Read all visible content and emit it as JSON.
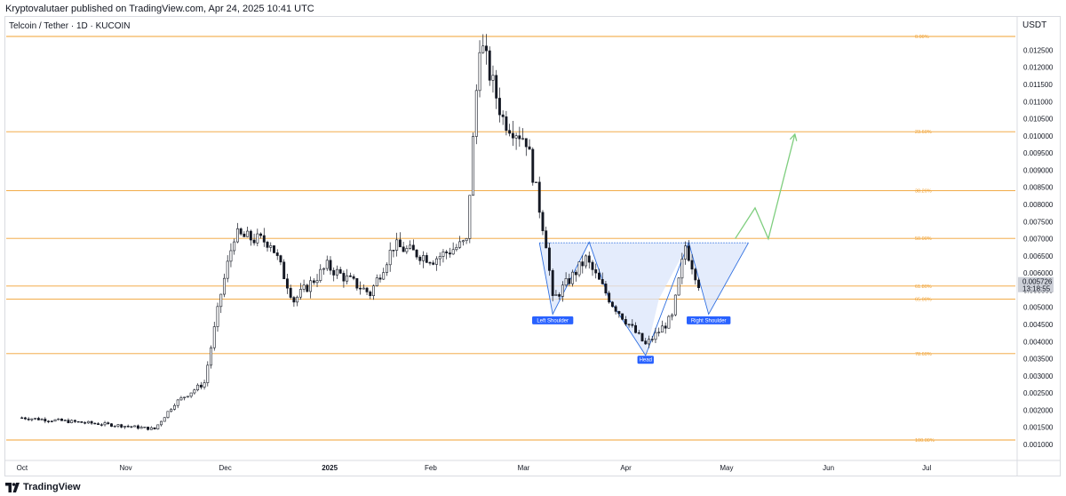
{
  "header": {
    "publisher_line": "Kryptovalutaer published on TradingView.com, Apr 24, 2025 10:41 UTC"
  },
  "footer": {
    "brand": "TradingView"
  },
  "colors": {
    "fib_line": "#f0a030",
    "candle": "#131722",
    "pattern_fill": "#dbe5fb",
    "pattern_line": "#2f6fe0",
    "label_bg": "#2962ff",
    "projection": "#7fce7f",
    "price_tag_bg": "#cdd0d8"
  },
  "chart_data": {
    "type": "candlestick",
    "title": "Telcoin / Tether · 1D · KUCOIN",
    "currency": "USDT",
    "ylim": [
      0.0008,
      0.01295
    ],
    "y_ticks": [
      "0.012500",
      "0.012000",
      "0.011500",
      "0.011000",
      "0.010500",
      "0.010000",
      "0.009500",
      "0.009000",
      "0.008500",
      "0.008000",
      "0.007500",
      "0.007000",
      "0.006500",
      "0.006000",
      "0.005500",
      "0.005000",
      "0.004500",
      "0.004000",
      "0.003500",
      "0.003000",
      "0.002500",
      "0.002000",
      "0.001500",
      "0.001000"
    ],
    "x_ticks": [
      {
        "label": "Oct",
        "day": 0,
        "bold": false
      },
      {
        "label": "Nov",
        "day": 31,
        "bold": false
      },
      {
        "label": "Dec",
        "day": 61,
        "bold": false
      },
      {
        "label": "2025",
        "day": 92,
        "bold": true
      },
      {
        "label": "Feb",
        "day": 123,
        "bold": false
      },
      {
        "label": "Mar",
        "day": 151,
        "bold": false
      },
      {
        "label": "Apr",
        "day": 182,
        "bold": false
      },
      {
        "label": "May",
        "day": 212,
        "bold": false
      },
      {
        "label": "Jun",
        "day": 243,
        "bold": false
      },
      {
        "label": "Jul",
        "day": 273,
        "bold": false
      }
    ],
    "x_range_days": [
      -5,
      300
    ],
    "fib_levels": [
      {
        "label": "0.00%",
        "price": 0.0129
      },
      {
        "label": "23.60%",
        "price": 0.01012
      },
      {
        "label": "38.20%",
        "price": 0.0084
      },
      {
        "label": "50.00%",
        "price": 0.00701
      },
      {
        "label": "61.80%",
        "price": 0.00562
      },
      {
        "label": "65.00%",
        "price": 0.00524
      },
      {
        "label": "78.60%",
        "price": 0.00365
      },
      {
        "label": "100.00%",
        "price": 0.00113
      }
    ],
    "last_price": {
      "value": "0.005726",
      "countdown": "13:18:55"
    },
    "pattern": {
      "neckline_top": 0.00688,
      "neckline_start_day": 156,
      "neckline_end_day": 219,
      "points": [
        {
          "day": 156,
          "price": 0.00688
        },
        {
          "day": 160,
          "price": 0.0048
        },
        {
          "day": 171,
          "price": 0.0069
        },
        {
          "day": 177,
          "price": 0.00524
        },
        {
          "day": 192,
          "price": 0.00524
        },
        {
          "day": 188,
          "price": 0.0036
        },
        {
          "day": 201,
          "price": 0.0069
        },
        {
          "day": 207,
          "price": 0.0048
        },
        {
          "day": 219,
          "price": 0.00688
        }
      ],
      "labels": [
        {
          "text": "Left Shoulder",
          "day": 160,
          "price": 0.00462
        },
        {
          "text": "Head",
          "day": 188,
          "price": 0.00347
        },
        {
          "text": "Right Shoulder",
          "day": 207,
          "price": 0.00462
        }
      ]
    },
    "projection": [
      {
        "day": 215,
        "price": 0.007
      },
      {
        "day": 221,
        "price": 0.0079
      },
      {
        "day": 225,
        "price": 0.007
      },
      {
        "day": 233,
        "price": 0.01005
      }
    ],
    "key_closes": [
      {
        "day": 0,
        "price": 0.00178
      },
      {
        "day": 30,
        "price": 0.00155
      },
      {
        "day": 40,
        "price": 0.00145
      },
      {
        "day": 46,
        "price": 0.0022
      },
      {
        "day": 55,
        "price": 0.0028
      },
      {
        "day": 60,
        "price": 0.0054
      },
      {
        "day": 64,
        "price": 0.0071
      },
      {
        "day": 75,
        "price": 0.0069
      },
      {
        "day": 82,
        "price": 0.0052
      },
      {
        "day": 92,
        "price": 0.0062
      },
      {
        "day": 105,
        "price": 0.0054
      },
      {
        "day": 112,
        "price": 0.0068
      },
      {
        "day": 124,
        "price": 0.0064
      },
      {
        "day": 134,
        "price": 0.0069
      },
      {
        "day": 138,
        "price": 0.0128
      },
      {
        "day": 145,
        "price": 0.0105
      },
      {
        "day": 152,
        "price": 0.0099
      },
      {
        "day": 158,
        "price": 0.0069
      },
      {
        "day": 160,
        "price": 0.0052
      },
      {
        "day": 170,
        "price": 0.0064
      },
      {
        "day": 178,
        "price": 0.0051
      },
      {
        "day": 188,
        "price": 0.0039
      },
      {
        "day": 196,
        "price": 0.0047
      },
      {
        "day": 200,
        "price": 0.0068
      },
      {
        "day": 204,
        "price": 0.0057
      }
    ]
  }
}
